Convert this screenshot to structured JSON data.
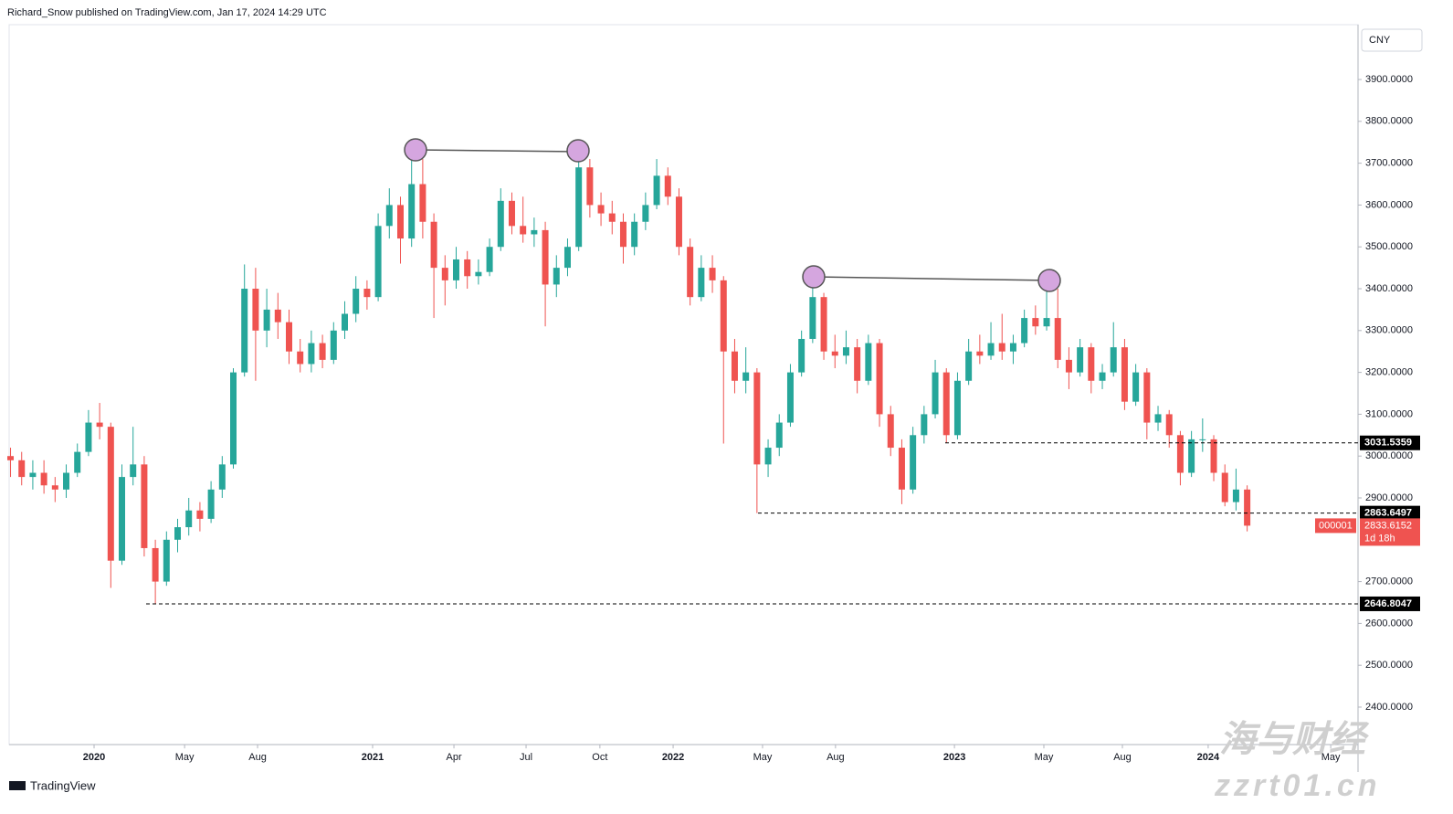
{
  "header": "Richard_Snow published on TradingView.com, Jan 17, 2024 14:29 UTC",
  "currency": "CNY",
  "brand": "TradingView",
  "watermark": {
    "name": "海与财经",
    "site": "zzrt01.cn"
  },
  "chart_data": {
    "type": "candlestick",
    "up_color": "#26a69a",
    "down_color": "#ef5350",
    "xlim": [
      2019.695,
      2024.538
    ],
    "ylim": [
      2310,
      4030
    ],
    "yticks": [
      {
        "value": 2400,
        "label": "2400.0000"
      },
      {
        "value": 2500,
        "label": "2500.0000"
      },
      {
        "value": 2600,
        "label": "2600.0000"
      },
      {
        "value": 2700,
        "label": "2700.0000"
      },
      {
        "value": 2900,
        "label": "2900.0000"
      },
      {
        "value": 3000,
        "label": "3000.0000"
      },
      {
        "value": 3100,
        "label": "3100.0000"
      },
      {
        "value": 3200,
        "label": "3200.0000"
      },
      {
        "value": 3300,
        "label": "3300.0000"
      },
      {
        "value": 3400,
        "label": "3400.0000"
      },
      {
        "value": 3500,
        "label": "3500.0000"
      },
      {
        "value": 3600,
        "label": "3600.0000"
      },
      {
        "value": 3700,
        "label": "3700.0000"
      },
      {
        "value": 3800,
        "label": "3800.0000"
      },
      {
        "value": 3900,
        "label": "3900.0000"
      }
    ],
    "xticks": [
      {
        "value": 2020.0,
        "label": "2020"
      },
      {
        "value": 2020.325,
        "label": "May"
      },
      {
        "value": 2020.587,
        "label": "Aug"
      },
      {
        "value": 2021.0,
        "label": "2021"
      },
      {
        "value": 2021.292,
        "label": "Apr"
      },
      {
        "value": 2021.551,
        "label": "Jul"
      },
      {
        "value": 2021.816,
        "label": "Oct"
      },
      {
        "value": 2022.079,
        "label": "2022"
      },
      {
        "value": 2022.4,
        "label": "May"
      },
      {
        "value": 2022.662,
        "label": "Aug"
      },
      {
        "value": 2023.089,
        "label": "2023"
      },
      {
        "value": 2023.41,
        "label": "May"
      },
      {
        "value": 2023.692,
        "label": "Aug"
      },
      {
        "value": 2024.0,
        "label": "2024"
      },
      {
        "value": 2024.44,
        "label": "May"
      }
    ],
    "levels": [
      3031.5359,
      2863.6497,
      2646.8047
    ],
    "last": {
      "symbol": "000001",
      "price": 2833.6152,
      "countdown": "1d 18h"
    },
    "candles": [
      [
        2019.7,
        3000,
        3020,
        2950,
        2990
      ],
      [
        2019.74,
        2990,
        3010,
        2930,
        2950
      ],
      [
        2019.78,
        2950,
        2990,
        2920,
        2960
      ],
      [
        2019.82,
        2960,
        2990,
        2910,
        2930
      ],
      [
        2019.86,
        2930,
        2950,
        2890,
        2920
      ],
      [
        2019.9,
        2920,
        2980,
        2900,
        2960
      ],
      [
        2019.94,
        2960,
        3030,
        2950,
        3010
      ],
      [
        2019.98,
        3010,
        3110,
        3000,
        3080
      ],
      [
        2020.02,
        3080,
        3127,
        3040,
        3070
      ],
      [
        2020.06,
        3070,
        3080,
        2685,
        2750
      ],
      [
        2020.1,
        2750,
        2980,
        2740,
        2950
      ],
      [
        2020.14,
        2950,
        3070,
        2930,
        2980
      ],
      [
        2020.18,
        2980,
        3000,
        2760,
        2780
      ],
      [
        2020.22,
        2780,
        2800,
        2646.8,
        2700
      ],
      [
        2020.26,
        2700,
        2820,
        2690,
        2800
      ],
      [
        2020.3,
        2800,
        2850,
        2770,
        2830
      ],
      [
        2020.34,
        2830,
        2900,
        2810,
        2870
      ],
      [
        2020.38,
        2870,
        2890,
        2820,
        2850
      ],
      [
        2020.42,
        2850,
        2940,
        2840,
        2920
      ],
      [
        2020.46,
        2920,
        3000,
        2900,
        2980
      ],
      [
        2020.5,
        2980,
        3210,
        2970,
        3200
      ],
      [
        2020.54,
        3200,
        3458,
        3190,
        3400
      ],
      [
        2020.58,
        3400,
        3450,
        3180,
        3300
      ],
      [
        2020.62,
        3300,
        3400,
        3260,
        3350
      ],
      [
        2020.66,
        3350,
        3390,
        3280,
        3320
      ],
      [
        2020.7,
        3320,
        3350,
        3220,
        3250
      ],
      [
        2020.74,
        3250,
        3280,
        3200,
        3220
      ],
      [
        2020.78,
        3220,
        3300,
        3200,
        3270
      ],
      [
        2020.82,
        3270,
        3290,
        3210,
        3230
      ],
      [
        2020.86,
        3230,
        3320,
        3220,
        3300
      ],
      [
        2020.9,
        3300,
        3370,
        3280,
        3340
      ],
      [
        2020.94,
        3340,
        3430,
        3320,
        3400
      ],
      [
        2020.98,
        3400,
        3420,
        3350,
        3380
      ],
      [
        2021.02,
        3380,
        3580,
        3370,
        3550
      ],
      [
        2021.06,
        3550,
        3640,
        3520,
        3600
      ],
      [
        2021.1,
        3600,
        3620,
        3460,
        3520
      ],
      [
        2021.14,
        3520,
        3731,
        3500,
        3650
      ],
      [
        2021.18,
        3650,
        3710,
        3520,
        3560
      ],
      [
        2021.22,
        3560,
        3580,
        3330,
        3450
      ],
      [
        2021.26,
        3450,
        3480,
        3360,
        3420
      ],
      [
        2021.3,
        3420,
        3500,
        3400,
        3470
      ],
      [
        2021.34,
        3470,
        3490,
        3400,
        3430
      ],
      [
        2021.38,
        3430,
        3470,
        3410,
        3440
      ],
      [
        2021.42,
        3440,
        3520,
        3430,
        3500
      ],
      [
        2021.46,
        3500,
        3640,
        3490,
        3610
      ],
      [
        2021.5,
        3610,
        3630,
        3530,
        3550
      ],
      [
        2021.54,
        3550,
        3620,
        3510,
        3530
      ],
      [
        2021.58,
        3530,
        3570,
        3500,
        3540
      ],
      [
        2021.62,
        3540,
        3560,
        3310,
        3410
      ],
      [
        2021.66,
        3410,
        3480,
        3380,
        3450
      ],
      [
        2021.7,
        3450,
        3520,
        3430,
        3500
      ],
      [
        2021.74,
        3500,
        3723,
        3490,
        3690
      ],
      [
        2021.78,
        3690,
        3710,
        3570,
        3600
      ],
      [
        2021.82,
        3600,
        3630,
        3550,
        3580
      ],
      [
        2021.86,
        3580,
        3610,
        3530,
        3560
      ],
      [
        2021.9,
        3560,
        3580,
        3460,
        3500
      ],
      [
        2021.94,
        3500,
        3580,
        3480,
        3560
      ],
      [
        2021.98,
        3560,
        3630,
        3540,
        3600
      ],
      [
        2022.02,
        3600,
        3710,
        3590,
        3670
      ],
      [
        2022.06,
        3670,
        3690,
        3600,
        3620
      ],
      [
        2022.1,
        3620,
        3640,
        3480,
        3500
      ],
      [
        2022.14,
        3500,
        3520,
        3360,
        3380
      ],
      [
        2022.18,
        3380,
        3480,
        3370,
        3450
      ],
      [
        2022.22,
        3450,
        3480,
        3390,
        3420
      ],
      [
        2022.26,
        3420,
        3430,
        3030,
        3250
      ],
      [
        2022.3,
        3250,
        3280,
        3150,
        3180
      ],
      [
        2022.34,
        3180,
        3260,
        3150,
        3200
      ],
      [
        2022.38,
        3200,
        3210,
        2863.6,
        2980
      ],
      [
        2022.42,
        2980,
        3040,
        2950,
        3020
      ],
      [
        2022.46,
        3020,
        3100,
        3000,
        3080
      ],
      [
        2022.5,
        3080,
        3220,
        3070,
        3200
      ],
      [
        2022.54,
        3200,
        3300,
        3190,
        3280
      ],
      [
        2022.58,
        3280,
        3424,
        3270,
        3380
      ],
      [
        2022.62,
        3380,
        3390,
        3230,
        3250
      ],
      [
        2022.66,
        3250,
        3290,
        3210,
        3240
      ],
      [
        2022.7,
        3240,
        3300,
        3220,
        3260
      ],
      [
        2022.74,
        3260,
        3280,
        3150,
        3180
      ],
      [
        2022.78,
        3180,
        3290,
        3170,
        3270
      ],
      [
        2022.82,
        3270,
        3280,
        3070,
        3100
      ],
      [
        2022.86,
        3100,
        3120,
        3000,
        3020
      ],
      [
        2022.9,
        3020,
        3040,
        2885,
        2920
      ],
      [
        2022.94,
        2920,
        3070,
        2910,
        3050
      ],
      [
        2022.98,
        3050,
        3120,
        3030,
        3100
      ],
      [
        2023.02,
        3100,
        3230,
        3090,
        3200
      ],
      [
        2023.06,
        3200,
        3210,
        3031.5,
        3050
      ],
      [
        2023.1,
        3050,
        3200,
        3040,
        3180
      ],
      [
        2023.14,
        3180,
        3280,
        3170,
        3250
      ],
      [
        2023.18,
        3250,
        3290,
        3220,
        3240
      ],
      [
        2023.22,
        3240,
        3320,
        3230,
        3270
      ],
      [
        2023.26,
        3270,
        3340,
        3230,
        3250
      ],
      [
        2023.3,
        3250,
        3290,
        3220,
        3270
      ],
      [
        2023.34,
        3270,
        3350,
        3260,
        3330
      ],
      [
        2023.38,
        3330,
        3360,
        3290,
        3310
      ],
      [
        2023.42,
        3310,
        3418,
        3300,
        3330
      ],
      [
        2023.46,
        3330,
        3400,
        3210,
        3230
      ],
      [
        2023.5,
        3230,
        3260,
        3160,
        3200
      ],
      [
        2023.54,
        3200,
        3280,
        3190,
        3260
      ],
      [
        2023.58,
        3260,
        3270,
        3150,
        3180
      ],
      [
        2023.62,
        3180,
        3220,
        3160,
        3200
      ],
      [
        2023.66,
        3200,
        3320,
        3190,
        3260
      ],
      [
        2023.7,
        3260,
        3280,
        3110,
        3130
      ],
      [
        2023.74,
        3130,
        3220,
        3120,
        3200
      ],
      [
        2023.78,
        3200,
        3210,
        3040,
        3080
      ],
      [
        2023.82,
        3080,
        3120,
        3060,
        3100
      ],
      [
        2023.86,
        3100,
        3110,
        3020,
        3050
      ],
      [
        2023.9,
        3050,
        3060,
        2930,
        2960
      ],
      [
        2023.94,
        2960,
        3060,
        2950,
        3040
      ],
      [
        2023.98,
        3040,
        3090,
        3010,
        3040
      ],
      [
        2024.02,
        3040,
        3050,
        2940,
        2960
      ],
      [
        2024.06,
        2960,
        2980,
        2880,
        2890
      ],
      [
        2024.1,
        2890,
        2970,
        2870,
        2920
      ],
      [
        2024.14,
        2920,
        2930,
        2820,
        2833.6152
      ]
    ]
  }
}
